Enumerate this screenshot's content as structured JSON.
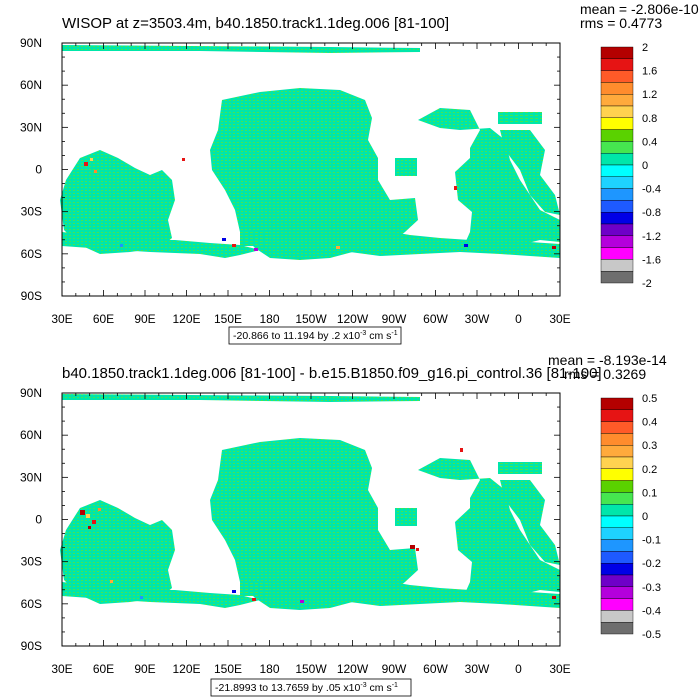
{
  "chart_data": [
    {
      "type": "heatmap",
      "title": "WISOP at z=3503.4m, b40.1850.track1.1deg.006 [81-100]",
      "stats": {
        "mean": "mean = -2.806e-10",
        "rms": "rms = 0.4773"
      },
      "x_ticks": [
        "30E",
        "60E",
        "90E",
        "120E",
        "150E",
        "180",
        "150W",
        "120W",
        "90W",
        "60W",
        "30W",
        "0",
        "30E"
      ],
      "y_ticks": [
        "90N",
        "60N",
        "30N",
        "0",
        "30S",
        "60S",
        "90S"
      ],
      "xlim": [
        30,
        390
      ],
      "ylim": [
        -90,
        90
      ],
      "contour_info": {
        "prefix": "-20.866 to 11.194 by .2 x10",
        "exp": "-3",
        "units": " cm s",
        "units_exp": "-1"
      },
      "colorbar": {
        "labels": [
          "2",
          "1.6",
          "1.2",
          "0.8",
          "0.4",
          "0",
          "-0.4",
          "-0.8",
          "-1.2",
          "-1.6",
          "-2"
        ],
        "colors": [
          "#b40000",
          "#e61414",
          "#ff5a28",
          "#ff8c2d",
          "#ffaa3c",
          "#ffd250",
          "#ffff00",
          "#5ad200",
          "#46e650",
          "#00e6aa",
          "#00ffff",
          "#1ed2ff",
          "#1e96ff",
          "#1e5aff",
          "#0000e6",
          "#6e00c8",
          "#b400dc",
          "#ff00ff",
          "#c8c8c8",
          "#6e6e6e"
        ]
      }
    },
    {
      "type": "heatmap",
      "title": "b40.1850.track1.1deg.006 [81-100] - b.e15.B1850.f09_g16.pi_control.36 [81-100]",
      "stats": {
        "mean": "mean = -8.193e-14",
        "rms": "rms = 0.3269"
      },
      "x_ticks": [
        "30E",
        "60E",
        "90E",
        "120E",
        "150E",
        "180",
        "150W",
        "120W",
        "90W",
        "60W",
        "30W",
        "0",
        "30E"
      ],
      "y_ticks": [
        "90N",
        "60N",
        "30N",
        "0",
        "30S",
        "60S",
        "90S"
      ],
      "xlim": [
        30,
        390
      ],
      "ylim": [
        -90,
        90
      ],
      "contour_info": {
        "prefix": "-21.8993 to 13.7659 by .05 x10",
        "exp": "-3",
        "units": " cm s",
        "units_exp": "-1"
      },
      "colorbar": {
        "labels": [
          "0.5",
          "0.4",
          "0.3",
          "0.2",
          "0.1",
          "0",
          "-0.1",
          "-0.2",
          "-0.3",
          "-0.4",
          "-0.5"
        ],
        "colors": [
          "#b40000",
          "#e61414",
          "#ff5a28",
          "#ff8c2d",
          "#ffaa3c",
          "#ffd250",
          "#ffff00",
          "#5ad200",
          "#46e650",
          "#00e6aa",
          "#00ffff",
          "#1ed2ff",
          "#1e96ff",
          "#1e5aff",
          "#0000e6",
          "#6e00c8",
          "#b400dc",
          "#ff00ff",
          "#c8c8c8",
          "#6e6e6e"
        ]
      }
    }
  ]
}
